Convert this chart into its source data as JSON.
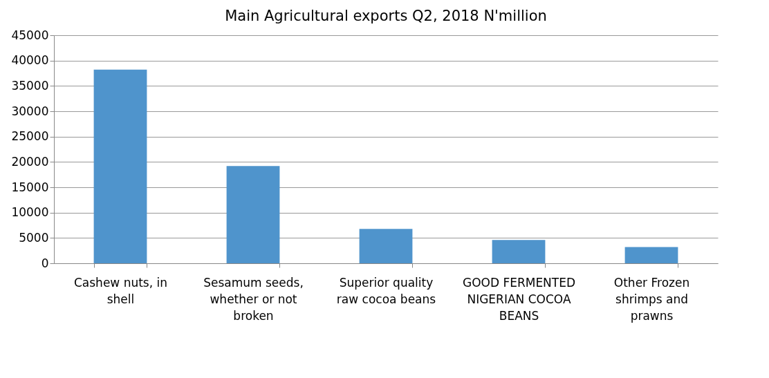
{
  "chart_data": {
    "type": "bar",
    "title": "Main Agricultural  exports Q2, 2018 N'million",
    "categories": [
      "Cashew nuts, in shell",
      "Sesamum seeds, whether or not broken",
      "Superior quality raw cocoa beans",
      "GOOD FERMENTED NIGERIAN COCOA BEANS",
      "Other Frozen shrimps and prawns"
    ],
    "values": [
      38200,
      19200,
      6800,
      4600,
      3200
    ],
    "color": "#4f94cc",
    "ylim": [
      0,
      45000
    ],
    "yticks": [
      0,
      5000,
      10000,
      15000,
      20000,
      25000,
      30000,
      35000,
      40000,
      45000
    ],
    "grid": "y"
  }
}
